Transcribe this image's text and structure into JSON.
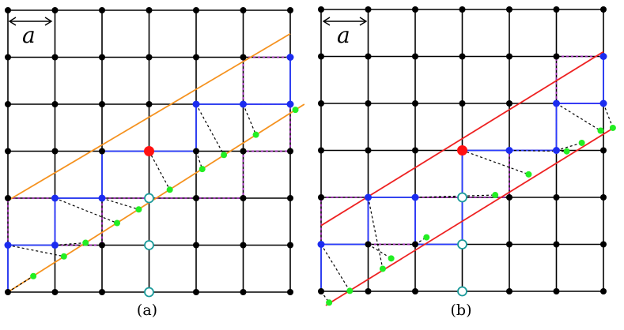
{
  "panels": [
    {
      "id": "a",
      "caption": "(a)",
      "scale_label": "a",
      "line_color": "#f5921f",
      "upper_line": {
        "start": [
          0.0,
          1.95
        ],
        "end": [
          6.0,
          5.5
        ]
      },
      "lower_line": {
        "start": [
          0.0,
          0.0
        ],
        "end": [
          6.3,
          4.0
        ]
      },
      "blue_nodes": [
        [
          0,
          1
        ],
        [
          1,
          1
        ],
        [
          1,
          2
        ],
        [
          2,
          2
        ],
        [
          4,
          4
        ],
        [
          5,
          4
        ],
        [
          6,
          5
        ],
        [
          6,
          4
        ]
      ],
      "blue_path": [
        [
          0,
          0
        ],
        [
          0,
          1
        ],
        [
          1,
          1
        ],
        [
          1,
          2
        ],
        [
          2,
          2
        ],
        [
          2,
          3
        ],
        [
          4,
          3
        ],
        [
          4,
          4
        ],
        [
          5,
          4
        ],
        [
          6,
          4
        ],
        [
          6,
          5
        ]
      ],
      "purple_path": [
        [
          0,
          1
        ],
        [
          0,
          2
        ],
        [
          1,
          2
        ],
        [
          1,
          1
        ],
        [
          2,
          1
        ],
        [
          2,
          2
        ],
        [
          4,
          2
        ],
        [
          5,
          2
        ],
        [
          5,
          3
        ],
        [
          6,
          3
        ],
        [
          6,
          4
        ],
        [
          5,
          4
        ],
        [
          5,
          5
        ],
        [
          6,
          5
        ]
      ],
      "highlight_node": [
        3,
        3
      ],
      "open_circles": [
        [
          3,
          2
        ],
        [
          3,
          1
        ],
        [
          3,
          0
        ]
      ],
      "projections": [
        {
          "from": [
            0,
            0
          ],
          "to": [
            0.54,
            0.34
          ]
        },
        {
          "from": [
            0,
            1
          ],
          "to": [
            1.19,
            0.76
          ]
        },
        {
          "from": [
            1,
            1
          ],
          "to": [
            1.65,
            1.05
          ]
        },
        {
          "from": [
            1,
            2
          ],
          "to": [
            2.32,
            1.47
          ]
        },
        {
          "from": [
            2,
            2
          ],
          "to": [
            2.78,
            1.76
          ]
        },
        {
          "from": [
            3,
            3
          ],
          "to": [
            3.44,
            2.18
          ]
        },
        {
          "from": [
            4,
            3
          ],
          "to": [
            4.13,
            2.62
          ]
        },
        {
          "from": [
            4,
            4
          ],
          "to": [
            4.59,
            2.92
          ]
        },
        {
          "from": [
            5,
            4
          ],
          "to": [
            5.27,
            3.35
          ]
        },
        {
          "from": [
            6,
            4
          ],
          "to": [
            6.11,
            3.88
          ]
        }
      ]
    },
    {
      "id": "b",
      "caption": "(b)",
      "scale_label": "a",
      "line_color": "#ee2222",
      "upper_line": {
        "start": [
          0.0,
          1.4
        ],
        "end": [
          6.0,
          5.1
        ]
      },
      "lower_line": {
        "start": [
          0.1,
          -0.3
        ],
        "end": [
          6.25,
          3.5
        ]
      },
      "blue_nodes": [
        [
          0,
          1
        ],
        [
          1,
          2
        ],
        [
          2,
          2
        ],
        [
          4,
          3
        ],
        [
          5,
          3
        ],
        [
          6,
          4
        ],
        [
          6,
          5
        ],
        [
          5,
          4
        ]
      ],
      "blue_path": [
        [
          0,
          0
        ],
        [
          0,
          1
        ],
        [
          1,
          1
        ],
        [
          1,
          2
        ],
        [
          2,
          2
        ],
        [
          2,
          1
        ],
        [
          3,
          1
        ],
        [
          3,
          3
        ],
        [
          4,
          3
        ],
        [
          5,
          3
        ],
        [
          5,
          4
        ],
        [
          6,
          4
        ],
        [
          6,
          5
        ]
      ],
      "purple_path": [
        [
          0,
          1
        ],
        [
          0,
          2
        ],
        [
          1,
          2
        ],
        [
          1,
          1
        ],
        [
          2,
          1
        ],
        [
          2,
          2
        ],
        [
          4,
          2
        ],
        [
          4,
          3
        ],
        [
          5,
          3
        ],
        [
          5,
          4
        ],
        [
          6,
          4
        ],
        [
          5,
          4
        ],
        [
          5,
          5
        ],
        [
          6,
          5
        ]
      ],
      "highlight_node": [
        3,
        3
      ],
      "open_circles": [
        [
          3,
          2
        ],
        [
          3,
          1
        ],
        [
          3,
          0
        ]
      ],
      "projections": [
        {
          "from": [
            0,
            0
          ],
          "to": [
            0.17,
            -0.24
          ]
        },
        {
          "from": [
            0,
            1
          ],
          "to": [
            0.61,
            0.01
          ]
        },
        {
          "from": [
            1,
            2
          ],
          "to": [
            1.31,
            0.48
          ]
        },
        {
          "from": [
            1,
            1
          ],
          "to": [
            1.49,
            0.7
          ]
        },
        {
          "from": [
            2,
            1
          ],
          "to": [
            2.24,
            1.15
          ]
        },
        {
          "from": [
            2,
            2
          ],
          "to": [
            3.7,
            2.05
          ]
        },
        {
          "from": [
            3,
            3
          ],
          "to": [
            4.41,
            2.49
          ]
        },
        {
          "from": [
            4,
            3
          ],
          "to": [
            5.22,
            2.98
          ]
        },
        {
          "from": [
            5,
            3
          ],
          "to": [
            5.54,
            3.16
          ]
        },
        {
          "from": [
            5,
            4
          ],
          "to": [
            5.94,
            3.42
          ]
        },
        {
          "from": [
            6,
            4
          ],
          "to": [
            6.2,
            3.48
          ]
        }
      ]
    }
  ]
}
